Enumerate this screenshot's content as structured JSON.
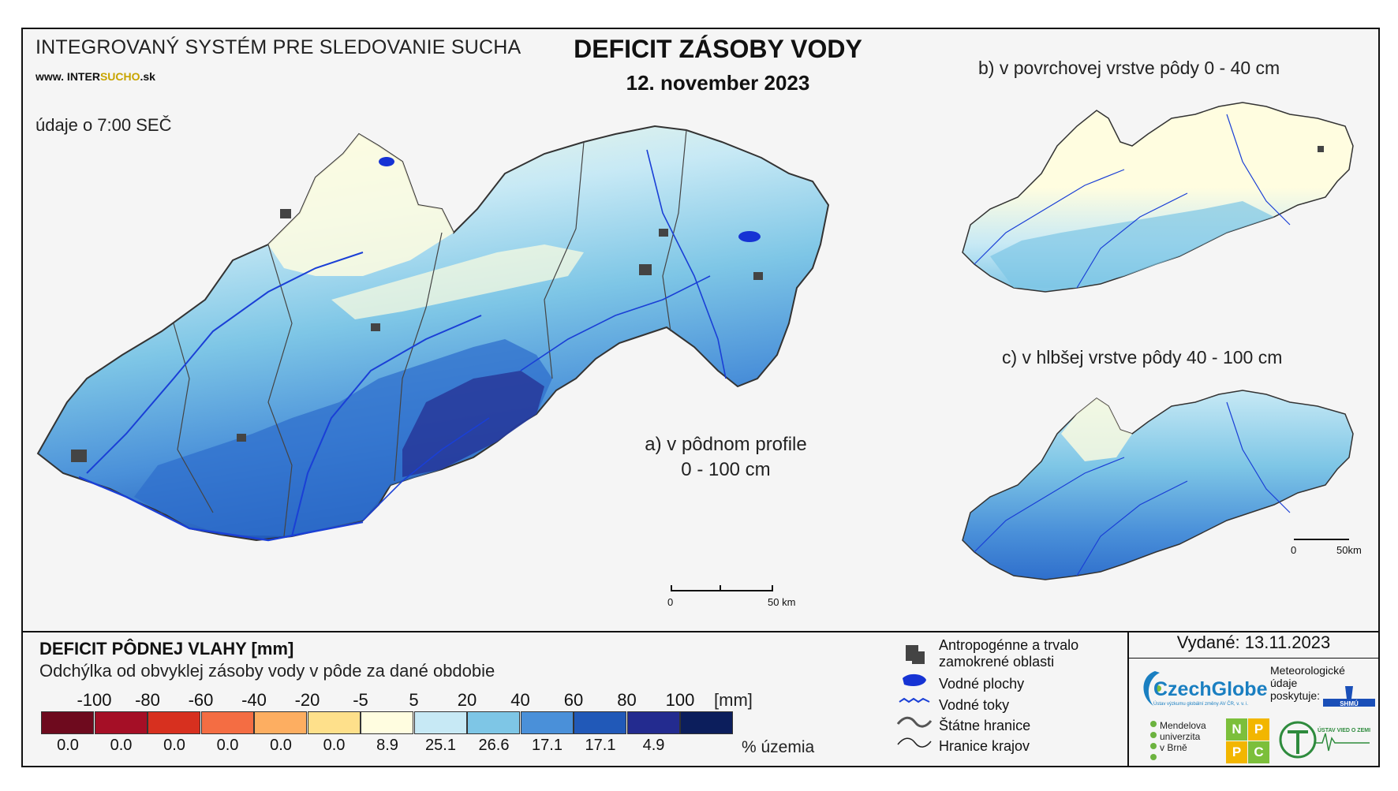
{
  "header": {
    "system_title": "INTEGROVANÝ SYSTÉM PRE SLEDOVANIE SUCHA",
    "site_prefix": "www. INTER",
    "site_highlight": "SUCHO",
    "site_suffix": ".sk",
    "time_note": "údaje o 7:00 SEČ",
    "main_title": "DEFICIT ZÁSOBY VODY",
    "date": "12. november 2023"
  },
  "maps": {
    "a_label_line1": "a) v pôdnom profile",
    "a_label_line2": "0 - 100 cm",
    "b_label": "b) v povrchovej vrstve pôdy 0 - 40 cm",
    "c_label": "c) v hlbšej vrstve pôdy 40 - 100 cm",
    "scale_main_zero": "0",
    "scale_main_end": "50 km",
    "scale_small_zero": "0",
    "scale_small_end": "50km"
  },
  "legend": {
    "title": "DEFICIT PÔDNEJ VLAHY [mm]",
    "subtitle": "Odchýlka od obvyklej zásoby vody v pôde za dané obdobie",
    "ticks": [
      "-100",
      "-80",
      "-60",
      "-40",
      "-20",
      "-5",
      "5",
      "20",
      "40",
      "60",
      "80",
      "100"
    ],
    "unit": "[mm]",
    "colors": [
      "#6e0a1e",
      "#a50f26",
      "#d7301f",
      "#f46d43",
      "#fdae61",
      "#fee08b",
      "#fffde0",
      "#c7e9f5",
      "#7ec6e6",
      "#4a90d9",
      "#2159b8",
      "#232b8f",
      "#0c1e5c"
    ],
    "percentages": [
      "0.0",
      "0.0",
      "0.0",
      "0.0",
      "0.0",
      "0.0",
      "8.9",
      "25.1",
      "26.6",
      "17.1",
      "17.1",
      "4.9",
      ""
    ],
    "percent_label": "% územia"
  },
  "symbols": {
    "anthropogenic_line1": "Antropogénne a trvalo",
    "anthropogenic_line2": "zamokrené oblasti",
    "water_bodies": "Vodné plochy",
    "rivers": "Vodné toky",
    "state_border": "Štátne hranice",
    "region_border": "Hranice krajov"
  },
  "issued": {
    "text": "Vydané: 13.11.2023"
  },
  "logos": {
    "czechglobe": "CzechGlobe",
    "czechglobe_sub": "Ústav výzkumu globální změny AV ČR, v. v. i.",
    "meteo_line1": "Meteorologické",
    "meteo_line2": "údaje",
    "meteo_line3": "poskytuje:",
    "shmu": "SHMÚ",
    "mendel_line1": "Mendelova",
    "mendel_line2": "univerzita",
    "mendel_line3": "v Brně",
    "nppc": [
      "N",
      "P",
      "P",
      "C"
    ],
    "ustav": "ÚSTAV VIED O ZEMI"
  }
}
